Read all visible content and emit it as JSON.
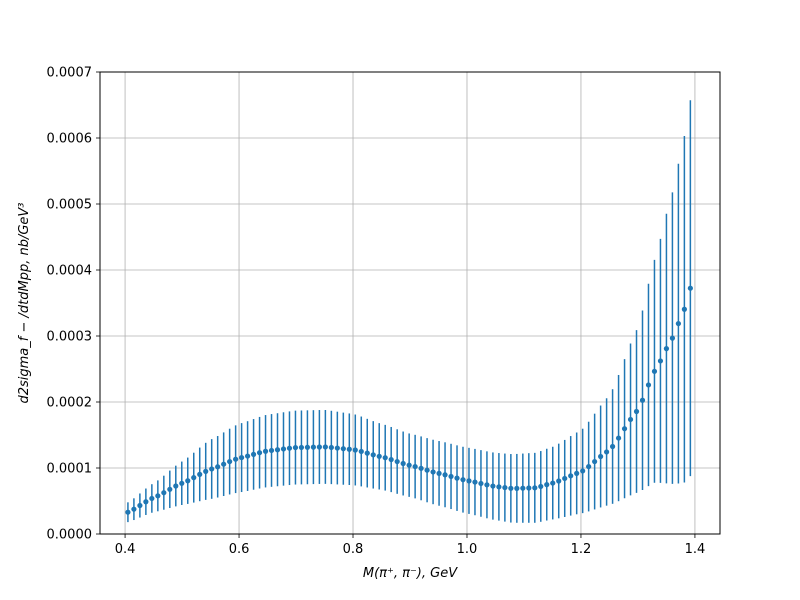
{
  "chart_data": {
    "type": "scatter",
    "title": "",
    "xlabel": "M(π⁺, π⁻), GeV",
    "ylabel": "d2sigma_f − /dtdMpp, nb/GeV³",
    "xlim": [
      0.356,
      1.444
    ],
    "ylim": [
      0,
      0.0007
    ],
    "x_ticks": [
      0.4,
      0.6,
      0.8,
      1.0,
      1.2,
      1.4
    ],
    "x_tick_labels": [
      "0.4",
      "0.6",
      "0.8",
      "1.0",
      "1.2",
      "1.4"
    ],
    "y_ticks": [
      0,
      0.0001,
      0.0002,
      0.0003,
      0.0004,
      0.0005,
      0.0006,
      0.0007
    ],
    "y_tick_labels": [
      "0.0000",
      "0.0001",
      "0.0002",
      "0.0003",
      "0.0004",
      "0.0005",
      "0.0006",
      "0.0007"
    ],
    "grid": true,
    "color": "#1f77b4",
    "series": [
      {
        "x_start": 0.405,
        "x_step": 0.0105,
        "count": 95,
        "y_anchor_x": [
          0.405,
          0.45,
          0.5,
          0.55,
          0.6,
          0.65,
          0.7,
          0.75,
          0.8,
          0.85,
          0.9,
          0.95,
          1.0,
          1.05,
          1.08,
          1.12,
          1.15,
          1.2,
          1.25,
          1.3,
          1.33,
          1.36,
          1.38,
          1.395
        ],
        "y_anchor": [
          3.3e-05,
          5.5e-05,
          7.7e-05,
          9.8e-05,
          0.000115,
          0.000126,
          0.000131,
          0.000132,
          0.000128,
          0.000117,
          0.000104,
          9.2e-05,
          8.1e-05,
          7.2e-05,
          6.9e-05,
          7e-05,
          7.7e-05,
          9.4e-05,
          0.000127,
          0.000188,
          0.000248,
          0.000296,
          0.000337,
          0.00038
        ],
        "err_anchor_x": [
          0.405,
          0.45,
          0.5,
          0.55,
          0.6,
          0.65,
          0.7,
          0.75,
          0.8,
          0.85,
          0.9,
          0.95,
          1.0,
          1.05,
          1.08,
          1.12,
          1.15,
          1.2,
          1.25,
          1.3,
          1.33,
          1.36,
          1.38,
          1.395
        ],
        "err_anchor": [
          1.5e-05,
          2.2e-05,
          3.3e-05,
          4.5e-05,
          5.2e-05,
          5.5e-05,
          5.6e-05,
          5.6e-05,
          5.4e-05,
          5e-05,
          4.8e-05,
          4.9e-05,
          5e-05,
          5.1e-05,
          5.2e-05,
          5.3e-05,
          5.5e-05,
          6.3e-05,
          8.3e-05,
          0.000125,
          0.00017,
          0.00022,
          0.00026,
          0.00029
        ]
      }
    ]
  }
}
